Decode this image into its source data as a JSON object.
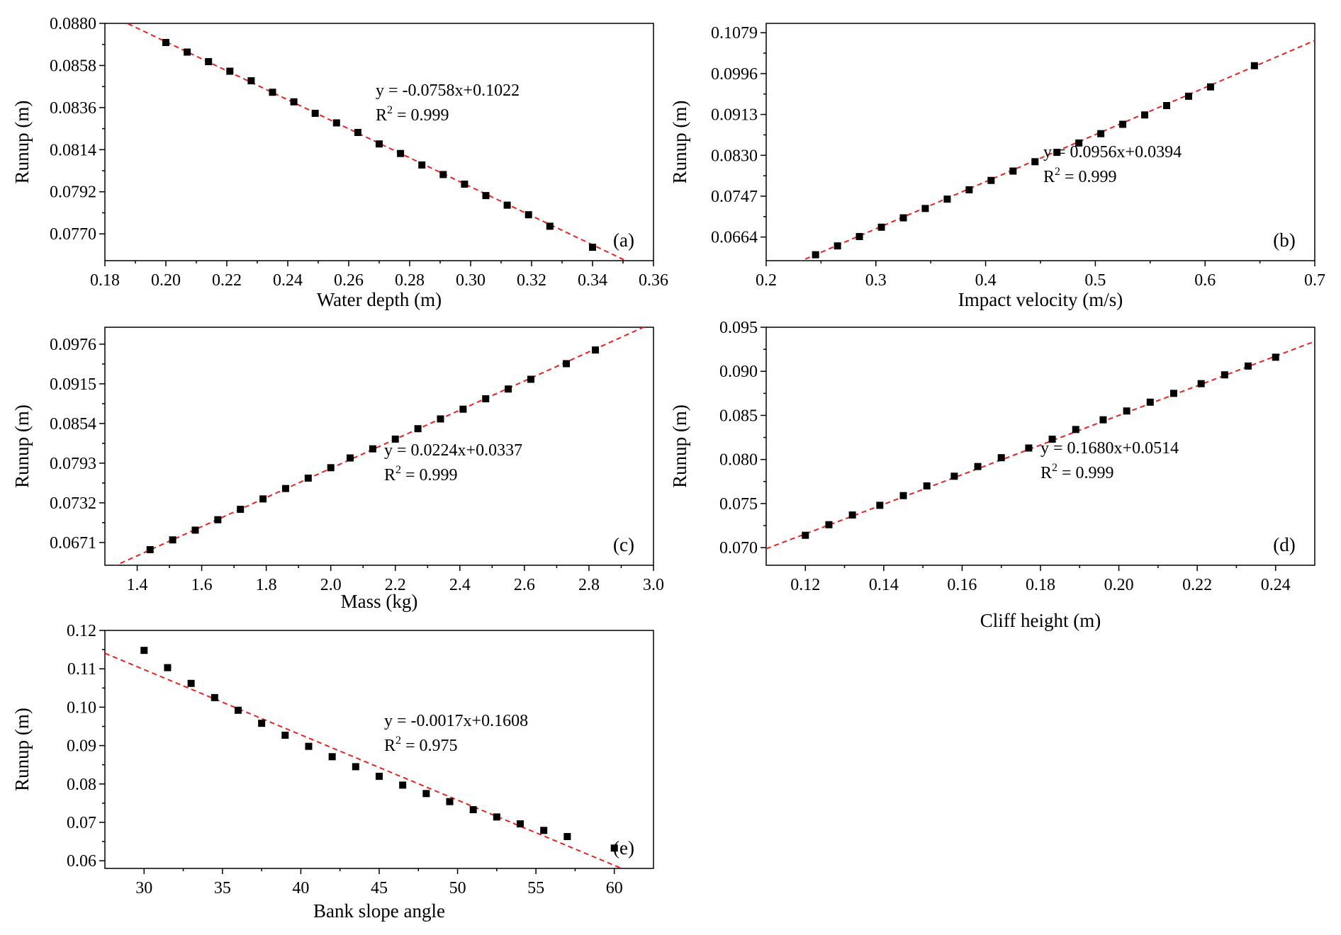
{
  "colors": {
    "points": "#000000",
    "fit_line": "#e8231f",
    "axes": "#000000"
  },
  "chart_data": [
    {
      "type": "scatter",
      "panel": "(a)",
      "xlabel": "Water depth (m)",
      "ylabel": "Runup (m)",
      "xlim": [
        0.18,
        0.36
      ],
      "ylim": [
        0.0756,
        0.088
      ],
      "xticks": [
        "0.18",
        "0.20",
        "0.22",
        "0.24",
        "0.26",
        "0.28",
        "0.30",
        "0.32",
        "0.34",
        "0.36"
      ],
      "yticks": [
        "0.0770",
        "0.0792",
        "0.0814",
        "0.0836",
        "0.0858",
        "0.0880"
      ],
      "fit": {
        "slope": -0.0758,
        "intercept": 0.1022,
        "equation": "y = -0.0758x+0.1022",
        "r2_prefix": "R",
        "r2_sup": "2",
        "r2_value": " = 0.999"
      },
      "series": [
        {
          "x": [
            0.2,
            0.207,
            0.214,
            0.221,
            0.228,
            0.235,
            0.242,
            0.249,
            0.256,
            0.263,
            0.27,
            0.277,
            0.284,
            0.291,
            0.298,
            0.305,
            0.312,
            0.319,
            0.326,
            0.34
          ],
          "y": [
            0.087,
            0.0865,
            0.086,
            0.0855,
            0.085,
            0.0844,
            0.0839,
            0.0833,
            0.0828,
            0.0823,
            0.0817,
            0.0812,
            0.0806,
            0.0801,
            0.0796,
            0.079,
            0.0785,
            0.078,
            0.0774,
            0.0763
          ]
        }
      ],
      "grid": false
    },
    {
      "type": "scatter",
      "panel": "(b)",
      "xlabel": "Impact velocity (m/s)",
      "ylabel": "Runup (m)",
      "xlim": [
        0.2,
        0.7
      ],
      "ylim": [
        0.0616,
        0.1098
      ],
      "xticks": [
        "0.2",
        "0.3",
        "0.4",
        "0.5",
        "0.6",
        "0.7"
      ],
      "yticks": [
        "0.0664",
        "0.0747",
        "0.0830",
        "0.0913",
        "0.0996",
        "0.1079"
      ],
      "fit": {
        "slope": 0.0956,
        "intercept": 0.0394,
        "equation": "y = 0.0956x+0.0394",
        "r2_prefix": "R",
        "r2_sup": "2",
        "r2_value": " = 0.999"
      },
      "series": [
        {
          "x": [
            0.245,
            0.265,
            0.285,
            0.305,
            0.325,
            0.345,
            0.365,
            0.385,
            0.405,
            0.425,
            0.445,
            0.465,
            0.485,
            0.505,
            0.525,
            0.545,
            0.565,
            0.585,
            0.605,
            0.645
          ],
          "y": [
            0.0628,
            0.0646,
            0.0665,
            0.0684,
            0.0703,
            0.0722,
            0.0741,
            0.076,
            0.0779,
            0.0798,
            0.0817,
            0.0836,
            0.0855,
            0.0874,
            0.0893,
            0.0912,
            0.0931,
            0.095,
            0.0969,
            0.1012
          ]
        }
      ],
      "grid": false
    },
    {
      "type": "scatter",
      "panel": "(c)",
      "xlabel": "Mass (kg)",
      "ylabel": "Runup (m)",
      "xlim": [
        1.3,
        3.0
      ],
      "ylim": [
        0.0636,
        0.1002
      ],
      "xticks": [
        "1.4",
        "1.6",
        "1.8",
        "2.0",
        "2.2",
        "2.4",
        "2.6",
        "2.8",
        "3.0"
      ],
      "yticks": [
        "0.0671",
        "0.0732",
        "0.0793",
        "0.0854",
        "0.0915",
        "0.0976"
      ],
      "fit": {
        "slope": 0.0224,
        "intercept": 0.0337,
        "equation": "y = 0.0224x+0.0337",
        "r2_prefix": "R",
        "r2_sup": "2",
        "r2_value": " = 0.999"
      },
      "series": [
        {
          "x": [
            1.44,
            1.51,
            1.58,
            1.65,
            1.72,
            1.79,
            1.86,
            1.93,
            2.0,
            2.06,
            2.13,
            2.2,
            2.27,
            2.34,
            2.41,
            2.48,
            2.55,
            2.62,
            2.73,
            2.82
          ],
          "y": [
            0.066,
            0.0675,
            0.069,
            0.0706,
            0.0722,
            0.0738,
            0.0754,
            0.077,
            0.0786,
            0.0801,
            0.0815,
            0.083,
            0.0846,
            0.0861,
            0.0876,
            0.0892,
            0.0907,
            0.0922,
            0.0946,
            0.0967
          ]
        }
      ],
      "grid": false
    },
    {
      "type": "scatter",
      "panel": "(d)",
      "xlabel": "Cliff height (m)",
      "ylabel": "Runup (m)",
      "xlim": [
        0.11,
        0.25
      ],
      "ylim": [
        0.068,
        0.095
      ],
      "xticks": [
        "0.12",
        "0.14",
        "0.16",
        "0.18",
        "0.20",
        "0.22",
        "0.24"
      ],
      "yticks": [
        "0.070",
        "0.075",
        "0.080",
        "0.085",
        "0.090",
        "0.095"
      ],
      "fit": {
        "slope": 0.168,
        "intercept": 0.0514,
        "equation": "y = 0.1680x+0.0514",
        "r2_prefix": "R",
        "r2_sup": "2",
        "r2_value": " = 0.999"
      },
      "series": [
        {
          "x": [
            0.12,
            0.126,
            0.132,
            0.139,
            0.145,
            0.151,
            0.158,
            0.164,
            0.17,
            0.177,
            0.183,
            0.189,
            0.196,
            0.202,
            0.208,
            0.214,
            0.221,
            0.227,
            0.233,
            0.24
          ],
          "y": [
            0.0714,
            0.0726,
            0.0737,
            0.0748,
            0.0759,
            0.077,
            0.0781,
            0.0792,
            0.0802,
            0.0813,
            0.0823,
            0.0834,
            0.0845,
            0.0855,
            0.0865,
            0.0875,
            0.0886,
            0.0896,
            0.0906,
            0.0916
          ]
        }
      ],
      "grid": false
    },
    {
      "type": "scatter",
      "panel": "(e)",
      "xlabel": "Bank slope angle",
      "ylabel": "Runup (m)",
      "xlim": [
        27.5,
        62.5
      ],
      "ylim": [
        0.058,
        0.12
      ],
      "xticks": [
        "30",
        "35",
        "40",
        "45",
        "50",
        "55",
        "60"
      ],
      "yticks": [
        "0.06",
        "0.07",
        "0.08",
        "0.09",
        "0.10",
        "0.11",
        "0.12"
      ],
      "fit": {
        "slope": -0.0017,
        "intercept": 0.1608,
        "equation": "y = -0.0017x+0.1608",
        "r2_prefix": "R",
        "r2_sup": "2",
        "r2_value": " = 0.975"
      },
      "series": [
        {
          "x": [
            30,
            31.5,
            33,
            34.5,
            36,
            37.5,
            39,
            40.5,
            42,
            43.5,
            45,
            46.5,
            48,
            49.5,
            51,
            52.5,
            54,
            55.5,
            57,
            60
          ],
          "y": [
            0.1148,
            0.1103,
            0.1062,
            0.1025,
            0.0992,
            0.0958,
            0.0927,
            0.0898,
            0.0871,
            0.0845,
            0.082,
            0.0797,
            0.0775,
            0.0754,
            0.0733,
            0.0714,
            0.0696,
            0.0679,
            0.0663,
            0.0633
          ]
        }
      ],
      "grid": false
    }
  ]
}
